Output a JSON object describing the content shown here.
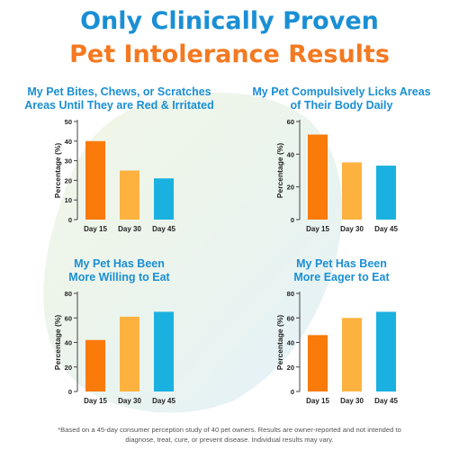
{
  "headline": {
    "line1": "Only Clinically Proven",
    "line2": "Pet Intolerance Results"
  },
  "colors": {
    "headline_blue": "#1a8fd4",
    "headline_orange": "#f47920",
    "chart_title": "#1a8fd4",
    "day15": "#fa7a0a",
    "day30": "#fdb240",
    "day45": "#1ab1e0",
    "axis_text": "#222222"
  },
  "footnote": {
    "line1": "*Based on a 45-day consumer perception study of 40 pet owners. Results are owner-reported and not intended to",
    "line2": "diagnose, treat, cure, or prevent disease. Individual results may vary."
  },
  "chart_data": [
    {
      "type": "bar",
      "title_lines": [
        "My Pet Bites, Chews, or Scratches",
        "Areas Until They are Red & Irritated"
      ],
      "categories": [
        "Day 15",
        "Day 30",
        "Day 45"
      ],
      "values": [
        40,
        25,
        21
      ],
      "ylabel": "Percentage (%)",
      "ylim": [
        0,
        50
      ],
      "yticks": [
        0,
        10,
        20,
        30,
        40,
        50
      ]
    },
    {
      "type": "bar",
      "title_lines": [
        "My Pet Compulsively Licks Areas",
        "of Their Body Daily"
      ],
      "categories": [
        "Day 15",
        "Day 30",
        "Day 45"
      ],
      "values": [
        52,
        35,
        33
      ],
      "ylabel": "Percentage (%)",
      "ylim": [
        0,
        60
      ],
      "yticks": [
        0,
        20,
        40,
        60
      ]
    },
    {
      "type": "bar",
      "title_lines": [
        "My Pet Has Been",
        "More Willing to Eat"
      ],
      "categories": [
        "Day 15",
        "Day 30",
        "Day 45"
      ],
      "values": [
        42,
        61,
        65
      ],
      "ylabel": "Percentage (%)",
      "ylim": [
        0,
        80
      ],
      "yticks": [
        0,
        20,
        40,
        60,
        80
      ]
    },
    {
      "type": "bar",
      "title_lines": [
        "My Pet Has Been",
        "More Eager to Eat"
      ],
      "categories": [
        "Day 15",
        "Day 30",
        "Day 45"
      ],
      "values": [
        46,
        60,
        65
      ],
      "ylabel": "Percentage (%)",
      "ylim": [
        0,
        80
      ],
      "yticks": [
        0,
        20,
        40,
        60,
        80
      ]
    }
  ]
}
